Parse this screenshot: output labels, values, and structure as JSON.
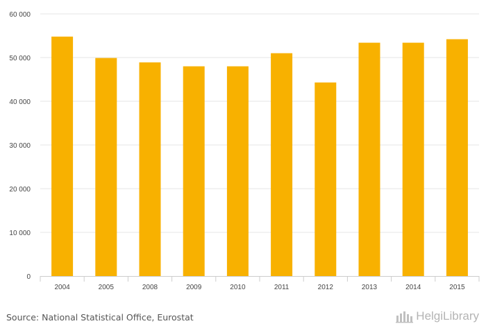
{
  "chart_data": {
    "type": "bar",
    "categories": [
      "2004",
      "2005",
      "2008",
      "2009",
      "2010",
      "2011",
      "2012",
      "2013",
      "2014",
      "2015"
    ],
    "values": [
      54800,
      49900,
      48900,
      48000,
      48000,
      51000,
      44300,
      53400,
      53400,
      54200
    ],
    "ylim": [
      0,
      60000
    ],
    "yticks": [
      "0",
      "10 000",
      "20 000",
      "30 000",
      "40 000",
      "50 000",
      "60 000"
    ],
    "ytick_values": [
      0,
      10000,
      20000,
      30000,
      40000,
      50000,
      60000
    ],
    "grid": true,
    "title": "",
    "xlabel": "",
    "ylabel": "",
    "bar_color": "#f8b100"
  },
  "footer": {
    "source": "Source: National Statistical Office, Eurostat",
    "brand": "HelgiLibrary"
  },
  "icons": {
    "brand": "helgi-library-logo-icon"
  }
}
